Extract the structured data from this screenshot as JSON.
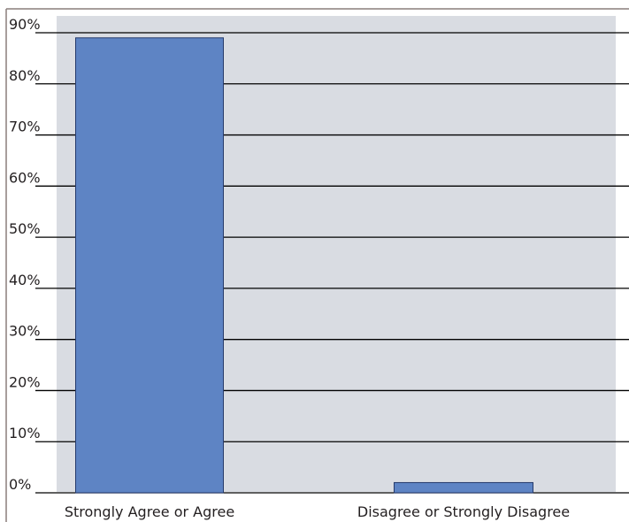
{
  "chart_data": {
    "type": "bar",
    "categories": [
      "Strongly Agree or Agree",
      "Disagree or Strongly Disagree"
    ],
    "values": [
      89,
      2
    ],
    "ylim": [
      0,
      90
    ],
    "yticks": [
      0,
      10,
      20,
      30,
      40,
      50,
      60,
      70,
      80,
      90
    ],
    "ytick_labels": [
      "0%",
      "10%",
      "20%",
      "30%",
      "40%",
      "50%",
      "60%",
      "70%",
      "80%",
      "90%"
    ],
    "grid": true,
    "legend": "none",
    "title": "",
    "xlabel": "",
    "ylabel": ""
  },
  "colors": {
    "bar": "#5e84c4",
    "bar_edge": "#253a6b",
    "plot_bg": "#d9dce2",
    "grid": "#000000",
    "frame": "#8a7f7b"
  }
}
